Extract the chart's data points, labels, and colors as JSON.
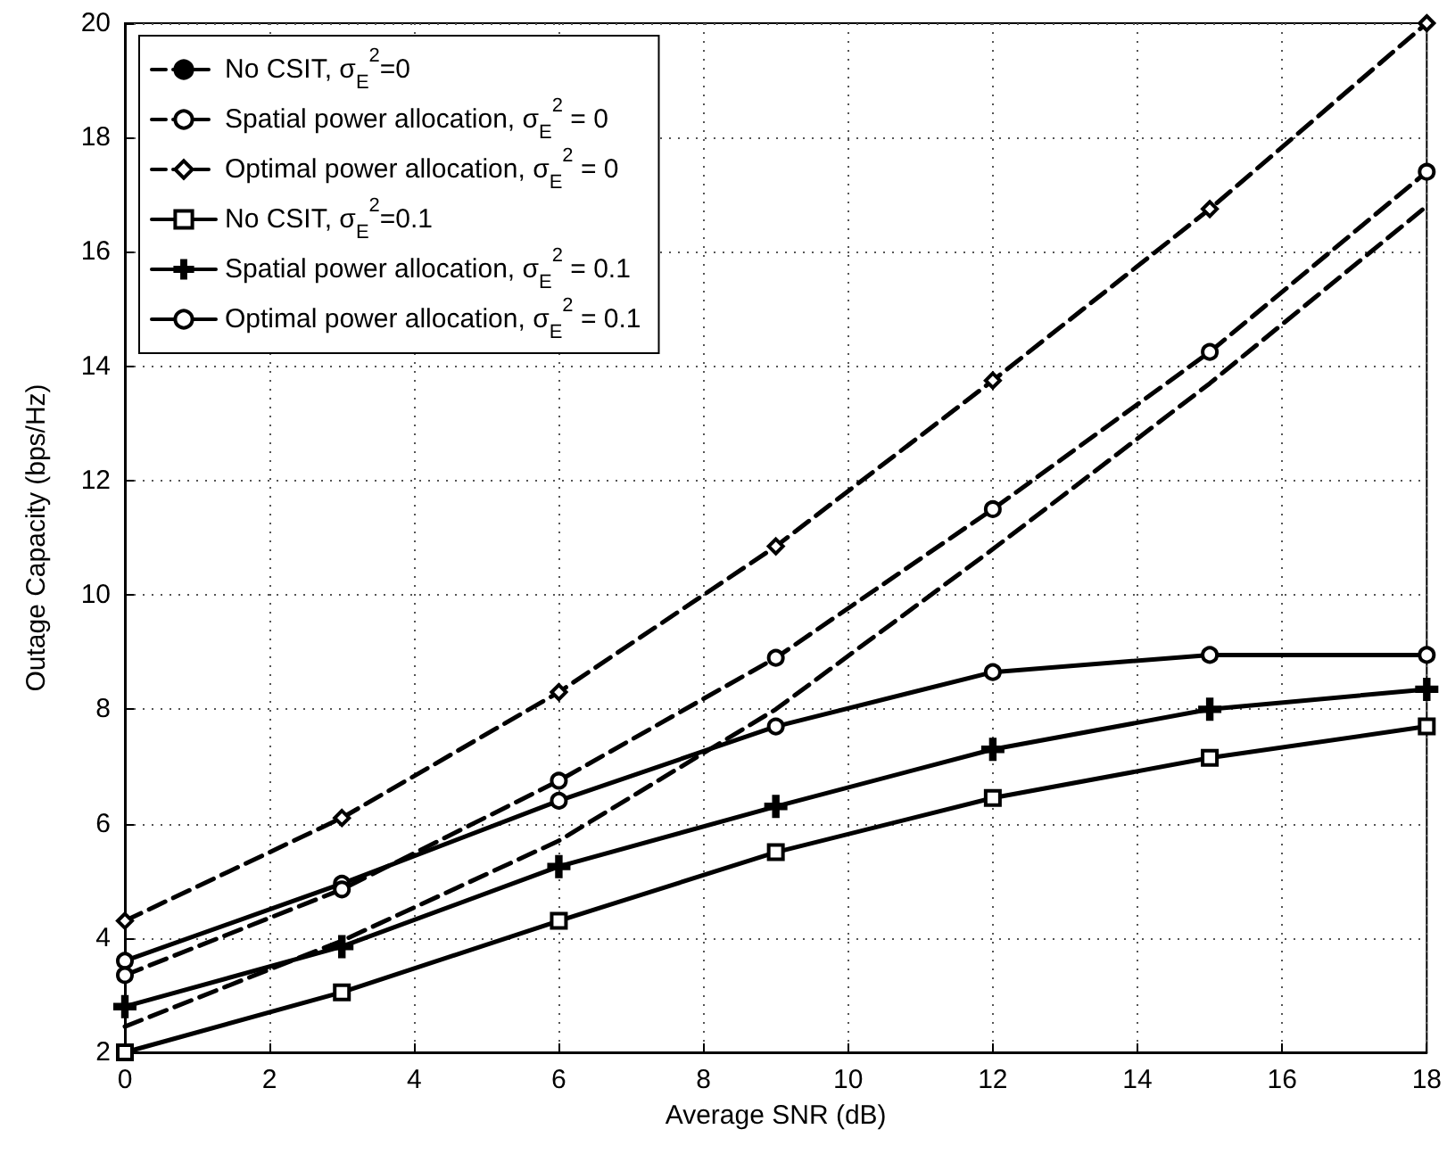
{
  "chart_data": {
    "type": "line",
    "xlabel": "Average SNR (dB)",
    "ylabel": "Outage Capacity (bps/Hz)",
    "x": [
      0,
      3,
      6,
      9,
      12,
      15,
      18
    ],
    "xlim": [
      0,
      18
    ],
    "xticks": [
      0,
      2,
      4,
      6,
      8,
      10,
      12,
      14,
      16,
      18
    ],
    "ylim": [
      2,
      20
    ],
    "yticks": [
      2,
      4,
      6,
      8,
      10,
      12,
      14,
      16,
      18,
      20
    ],
    "grid": true,
    "legend": "top left",
    "series": [
      {
        "name": "No CSIT, σ$_{E}$$^{2}$=0",
        "color": "#000000",
        "line_style": "dashed",
        "marker": "none",
        "values": [
          2.45,
          3.95,
          5.7,
          8.0,
          10.8,
          13.7,
          16.8
        ]
      },
      {
        "name": "Spatial power allocation, σ$_{E}$$^{2}$ = 0",
        "color": "#000000",
        "line_style": "dashed",
        "marker": "circle",
        "values": [
          3.35,
          4.85,
          6.75,
          8.9,
          11.5,
          14.25,
          17.4
        ]
      },
      {
        "name": "Optimal power allocation, σ$_{E}$$^{2}$ = 0",
        "color": "#000000",
        "line_style": "dashed",
        "marker": "diamond",
        "values": [
          4.3,
          6.1,
          8.3,
          10.85,
          13.75,
          16.75,
          20
        ]
      },
      {
        "name": "No CSIT, σ$_{E}$$^{2}$=0.1",
        "color": "#000000",
        "line_style": "solid",
        "marker": "square",
        "values": [
          2.0,
          3.05,
          4.3,
          5.5,
          6.45,
          7.15,
          7.7
        ]
      },
      {
        "name": "Spatial power allocation, σ$_{E}$$^{2}$ = 0.1",
        "color": "#000000",
        "line_style": "solid",
        "marker": "cross",
        "values": [
          2.8,
          3.85,
          5.25,
          6.3,
          7.3,
          8.0,
          8.35
        ]
      },
      {
        "name": "Optimal power allocation, σ$_{E}$$^{2}$ = 0.1",
        "color": "#000000",
        "line_style": "solid",
        "marker": "circle",
        "values": [
          3.6,
          4.95,
          6.4,
          7.7,
          8.65,
          8.95,
          8.95
        ]
      }
    ]
  }
}
